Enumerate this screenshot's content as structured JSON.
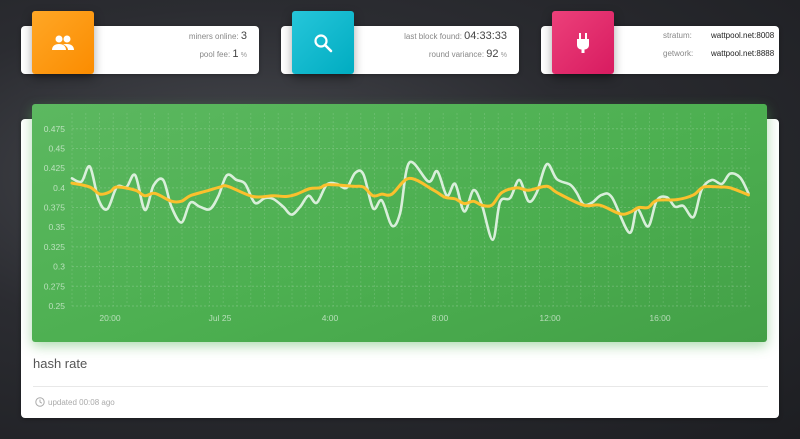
{
  "stats": {
    "miners": {
      "icon": "people-icon",
      "color": "#ff9800",
      "miners_online_label": "miners online:",
      "miners_online_value": "3",
      "pool_fee_label": "pool fee:",
      "pool_fee_value": "1",
      "pool_fee_unit": "%"
    },
    "block": {
      "icon": "search-icon",
      "color": "#00bcd4",
      "last_block_label": "last block found:",
      "last_block_value": "04:33:33",
      "variance_label": "round variance:",
      "variance_value": "92",
      "variance_unit": "%"
    },
    "servers": {
      "icon": "plug-icon",
      "color": "#e91e63",
      "stratum_label": "stratum:",
      "stratum_value": "wattpool.net:8008",
      "getwork_label": "getwork:",
      "getwork_value": "wattpool.net:8888"
    }
  },
  "card": {
    "title": "hash rate",
    "footer_icon": "clock-icon",
    "updated": "updated 00:08 ago"
  },
  "chart_data": {
    "type": "line",
    "background": "#4caf50",
    "grid": true,
    "ylim": [
      0.25,
      0.495
    ],
    "yticks": [
      "0.25",
      "0.275",
      "0.3",
      "0.325",
      "0.35",
      "0.375",
      "0.4",
      "0.425",
      "0.45",
      "0.475"
    ],
    "xticks": [
      {
        "label": "20:00",
        "t": "Jul 24 20:00"
      },
      {
        "label": "Jul 25",
        "t": "Jul 25 00:00"
      },
      {
        "label": "4:00",
        "t": "Jul 25 04:00"
      },
      {
        "label": "8:00",
        "t": "Jul 25 08:00"
      },
      {
        "label": "12:00",
        "t": "Jul 25 12:00"
      },
      {
        "label": "16:00",
        "t": "Jul 25 16:00"
      }
    ],
    "xlim": [
      "Jul 24 18:36",
      "Jul 25 19:15"
    ],
    "series": [
      {
        "color": "#e8f5e9",
        "points": [
          [
            "Jul 24 18:37",
            0.412
          ],
          [
            "Jul 24 18:58",
            0.408
          ],
          [
            "Jul 24 19:16",
            0.427
          ],
          [
            "Jul 24 19:35",
            0.385
          ],
          [
            "Jul 24 19:54",
            0.373
          ],
          [
            "Jul 24 20:15",
            0.401
          ],
          [
            "Jul 24 20:36",
            0.401
          ],
          [
            "Jul 24 20:55",
            0.416
          ],
          [
            "Jul 24 21:16",
            0.372
          ],
          [
            "Jul 24 21:35",
            0.403
          ],
          [
            "Jul 24 21:56",
            0.41
          ],
          [
            "Jul 24 22:14",
            0.376
          ],
          [
            "Jul 24 22:36",
            0.356
          ],
          [
            "Jul 24 22:55",
            0.381
          ],
          [
            "Jul 24 23:16",
            0.376
          ],
          [
            "Jul 24 23:38",
            0.373
          ],
          [
            "Jul 24 23:56",
            0.389
          ],
          [
            "Jul 25 00:15",
            0.416
          ],
          [
            "Jul 25 00:36",
            0.41
          ],
          [
            "Jul 25 00:55",
            0.405
          ],
          [
            "Jul 25 01:16",
            0.381
          ],
          [
            "Jul 25 01:38",
            0.387
          ],
          [
            "Jul 25 01:56",
            0.386
          ],
          [
            "Jul 25 02:18",
            0.376
          ],
          [
            "Jul 25 02:36",
            0.366
          ],
          [
            "Jul 25 02:55",
            0.376
          ],
          [
            "Jul 25 03:13",
            0.39
          ],
          [
            "Jul 25 03:31",
            0.381
          ],
          [
            "Jul 25 03:53",
            0.404
          ],
          [
            "Jul 25 04:15",
            0.405
          ],
          [
            "Jul 25 04:36",
            0.4
          ],
          [
            "Jul 25 04:55",
            0.419
          ],
          [
            "Jul 25 05:13",
            0.417
          ],
          [
            "Jul 25 05:34",
            0.374
          ],
          [
            "Jul 25 05:53",
            0.384
          ],
          [
            "Jul 25 06:15",
            0.352
          ],
          [
            "Jul 25 06:33",
            0.368
          ],
          [
            "Jul 25 06:53",
            0.432
          ],
          [
            "Jul 25 07:35",
            0.408
          ],
          [
            "Jul 25 07:54",
            0.421
          ],
          [
            "Jul 25 08:15",
            0.39
          ],
          [
            "Jul 25 08:33",
            0.405
          ],
          [
            "Jul 25 08:53",
            0.37
          ],
          [
            "Jul 25 09:13",
            0.397
          ],
          [
            "Jul 25 09:31",
            0.379
          ],
          [
            "Jul 25 09:55",
            0.334
          ],
          [
            "Jul 25 10:11",
            0.382
          ],
          [
            "Jul 25 10:33",
            0.387
          ],
          [
            "Jul 25 10:53",
            0.41
          ],
          [
            "Jul 25 11:13",
            0.383
          ],
          [
            "Jul 25 11:31",
            0.394
          ],
          [
            "Jul 25 11:53",
            0.43
          ],
          [
            "Jul 25 12:15",
            0.411
          ],
          [
            "Jul 25 12:44",
            0.404
          ],
          [
            "Jul 25 12:58",
            0.394
          ],
          [
            "Jul 25 13:13",
            0.379
          ],
          [
            "Jul 25 13:31",
            0.381
          ],
          [
            "Jul 25 13:53",
            0.391
          ],
          [
            "Jul 25 14:15",
            0.388
          ],
          [
            "Jul 25 14:53",
            0.343
          ],
          [
            "Jul 25 15:10",
            0.373
          ],
          [
            "Jul 25 15:34",
            0.351
          ],
          [
            "Jul 25 15:53",
            0.384
          ],
          [
            "Jul 25 16:15",
            0.388
          ],
          [
            "Jul 25 16:33",
            0.376
          ],
          [
            "Jul 25 16:51",
            0.377
          ],
          [
            "Jul 25 17:13",
            0.363
          ],
          [
            "Jul 25 17:31",
            0.398
          ],
          [
            "Jul 25 17:53",
            0.41
          ],
          [
            "Jul 25 18:15",
            0.405
          ],
          [
            "Jul 25 18:33",
            0.418
          ],
          [
            "Jul 25 18:55",
            0.413
          ],
          [
            "Jul 25 19:13",
            0.393
          ]
        ]
      },
      {
        "color": "#fbc02d",
        "points": [
          [
            "Jul 24 18:37",
            0.406
          ],
          [
            "Jul 24 19:16",
            0.401
          ],
          [
            "Jul 24 19:38",
            0.392
          ],
          [
            "Jul 24 20:00",
            0.395
          ],
          [
            "Jul 24 20:15",
            0.401
          ],
          [
            "Jul 24 20:55",
            0.397
          ],
          [
            "Jul 24 21:16",
            0.39
          ],
          [
            "Jul 24 21:38",
            0.393
          ],
          [
            "Jul 24 22:14",
            0.383
          ],
          [
            "Jul 24 22:36",
            0.383
          ],
          [
            "Jul 24 22:55",
            0.39
          ],
          [
            "Jul 24 23:31",
            0.396
          ],
          [
            "Jul 25 00:00",
            0.401
          ],
          [
            "Jul 25 00:17",
            0.402
          ],
          [
            "Jul 25 01:12",
            0.389
          ],
          [
            "Jul 25 01:56",
            0.39
          ],
          [
            "Jul 25 02:24",
            0.389
          ],
          [
            "Jul 25 02:47",
            0.392
          ],
          [
            "Jul 25 03:16",
            0.399
          ],
          [
            "Jul 25 03:38",
            0.4
          ],
          [
            "Jul 25 03:56",
            0.404
          ],
          [
            "Jul 25 04:51",
            0.402
          ],
          [
            "Jul 25 05:13",
            0.401
          ],
          [
            "Jul 25 05:34",
            0.39
          ],
          [
            "Jul 25 05:53",
            0.392
          ],
          [
            "Jul 25 06:15",
            0.392
          ],
          [
            "Jul 25 06:53",
            0.412
          ],
          [
            "Jul 25 07:46",
            0.397
          ],
          [
            "Jul 25 08:11",
            0.388
          ],
          [
            "Jul 25 08:33",
            0.386
          ],
          [
            "Jul 25 08:53",
            0.38
          ],
          [
            "Jul 25 09:13",
            0.383
          ],
          [
            "Jul 25 09:31",
            0.378
          ],
          [
            "Jul 25 09:53",
            0.378
          ],
          [
            "Jul 25 10:15",
            0.394
          ],
          [
            "Jul 25 10:47",
            0.4
          ],
          [
            "Jul 25 11:13",
            0.397
          ],
          [
            "Jul 25 11:53",
            0.402
          ],
          [
            "Jul 25 12:15",
            0.394
          ],
          [
            "Jul 25 13:13",
            0.378
          ],
          [
            "Jul 25 13:49",
            0.378
          ],
          [
            "Jul 25 14:33",
            0.367
          ],
          [
            "Jul 25 14:55",
            0.369
          ],
          [
            "Jul 25 15:13",
            0.375
          ],
          [
            "Jul 25 15:34",
            0.375
          ],
          [
            "Jul 25 15:53",
            0.384
          ],
          [
            "Jul 25 16:37",
            0.385
          ],
          [
            "Jul 25 17:13",
            0.391
          ],
          [
            "Jul 25 17:35",
            0.401
          ],
          [
            "Jul 25 18:11",
            0.401
          ],
          [
            "Jul 25 18:33",
            0.4
          ],
          [
            "Jul 25 19:13",
            0.391
          ]
        ]
      }
    ]
  }
}
